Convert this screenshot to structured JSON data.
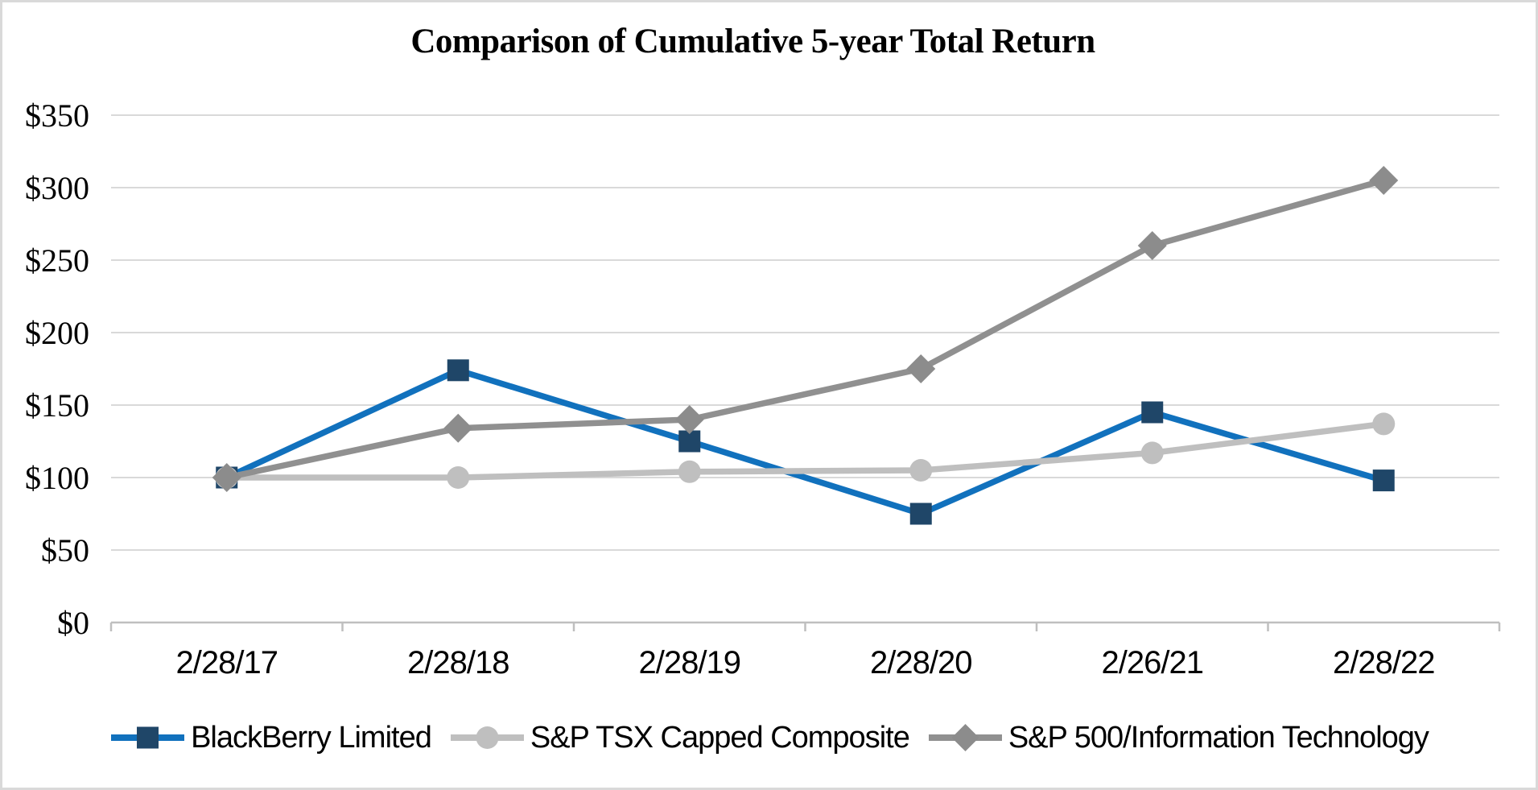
{
  "window": {
    "background_color": "#FFFFFF",
    "border_color": "#D9D9D9"
  },
  "chart_data": {
    "type": "line",
    "title": "Comparison of Cumulative 5-year Total Return",
    "categories": [
      "2/28/17",
      "2/28/18",
      "2/28/19",
      "2/28/20",
      "2/26/21",
      "2/28/22"
    ],
    "series": [
      {
        "name": "BlackBerry Limited",
        "marker": "square",
        "line_color": "#1171BD",
        "marker_color": "#1F4668",
        "values": [
          100,
          174,
          125,
          75,
          145,
          98
        ]
      },
      {
        "name": "S&P TSX Capped Composite",
        "marker": "circle",
        "line_color": "#BFBFBF",
        "marker_color": "#BFBFBF",
        "values": [
          100,
          100,
          104,
          105,
          117,
          137
        ]
      },
      {
        "name": "S&P 500/Information Technology",
        "marker": "diamond",
        "line_color": "#909090",
        "marker_color": "#8C8C8C",
        "values": [
          100,
          134,
          140,
          175,
          260,
          305
        ]
      }
    ],
    "y_axis": {
      "prefix": "$",
      "min": 0,
      "max": 350,
      "step": 50,
      "tick_values": [
        350,
        300,
        250,
        200,
        150,
        100,
        50,
        0
      ],
      "tick_labels": [
        "$350",
        "$300",
        "$250",
        "$200",
        "$150",
        "$100",
        "$50",
        "$0"
      ]
    },
    "x_axis": {
      "tick_marks": true
    },
    "grid": true,
    "gridline_color": "#D9D9D9",
    "axis_line_color": "#BFBFBF",
    "legend_position": "bottom"
  }
}
